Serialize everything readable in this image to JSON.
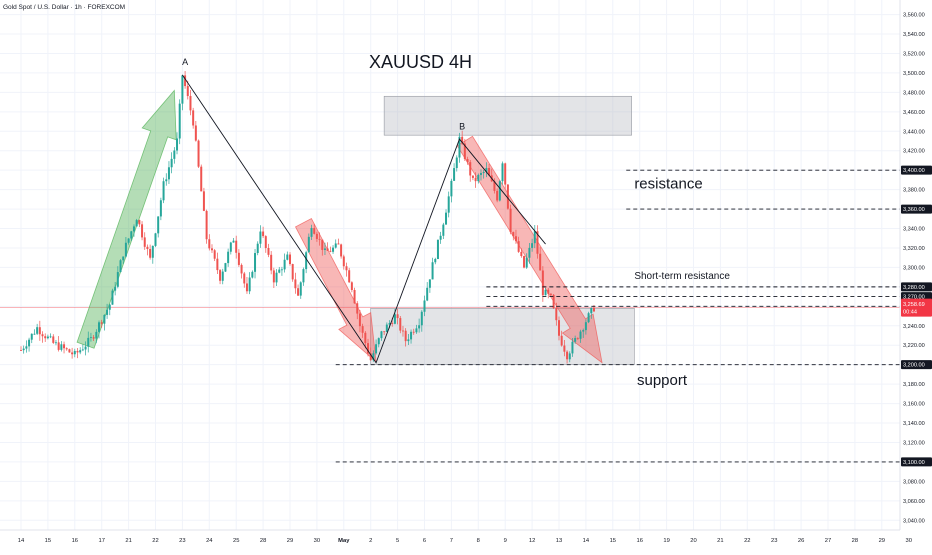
{
  "header": {
    "symbol_line": "Gold Spot / U.S. Dollar · 1h · FOREXCOM"
  },
  "colors": {
    "up": "#26a69a",
    "down": "#ef5350",
    "grid": "#f0f3fa",
    "text": "#131722",
    "green_arrow": "#4caf50",
    "red_arrow": "#ef5350",
    "zone": "#b0b3bb",
    "price_tag": "#f23645",
    "label_tag": "#131722"
  },
  "chart_data": {
    "type": "candlestick",
    "title": "XAUUSD  4H",
    "ylim": [
      3030,
      3575
    ],
    "y_ticks": [
      "3,040.00",
      "3,060.00",
      "3,080.00",
      "3,100.00",
      "3,120.00",
      "3,140.00",
      "3,160.00",
      "3,180.00",
      "3,200.00",
      "3,220.00",
      "3,240.00",
      "3,260.00",
      "3,280.00",
      "3,300.00",
      "3,320.00",
      "3,340.00",
      "3,360.00",
      "3,380.00",
      "3,400.00",
      "3,420.00",
      "3,440.00",
      "3,460.00",
      "3,480.00",
      "3,500.00",
      "3,520.00",
      "3,540.00",
      "3,560.00"
    ],
    "x_ticks": [
      "14",
      "15",
      "16",
      "17",
      "21",
      "22",
      "23",
      "24",
      "25",
      "28",
      "29",
      "30",
      "May",
      "2",
      "5",
      "6",
      "7",
      "8",
      "9",
      "12",
      "13",
      "14",
      "15",
      "16",
      "19",
      "20",
      "21",
      "22",
      "23",
      "26",
      "27",
      "28",
      "29",
      "30"
    ],
    "current_price": {
      "value": 3258.69,
      "label": "3,258.69",
      "countdown": "00:44"
    },
    "price_path": [
      {
        "x": 0,
        "y": 3215
      },
      {
        "x": 0.6,
        "y": 3238
      },
      {
        "x": 1.2,
        "y": 3222
      },
      {
        "x": 2.0,
        "y": 3210
      },
      {
        "x": 2.6,
        "y": 3226
      },
      {
        "x": 3.3,
        "y": 3262
      },
      {
        "x": 3.8,
        "y": 3315
      },
      {
        "x": 4.3,
        "y": 3352
      },
      {
        "x": 4.8,
        "y": 3308
      },
      {
        "x": 5.3,
        "y": 3385
      },
      {
        "x": 5.8,
        "y": 3430
      },
      {
        "x": 6.0,
        "y": 3498
      },
      {
        "x": 6.4,
        "y": 3450
      },
      {
        "x": 6.9,
        "y": 3330
      },
      {
        "x": 7.4,
        "y": 3290
      },
      {
        "x": 7.9,
        "y": 3330
      },
      {
        "x": 8.4,
        "y": 3272
      },
      {
        "x": 8.9,
        "y": 3340
      },
      {
        "x": 9.4,
        "y": 3288
      },
      {
        "x": 9.9,
        "y": 3310
      },
      {
        "x": 10.3,
        "y": 3270
      },
      {
        "x": 10.8,
        "y": 3345
      },
      {
        "x": 11.3,
        "y": 3315
      },
      {
        "x": 11.8,
        "y": 3322
      },
      {
        "x": 12.3,
        "y": 3280
      },
      {
        "x": 12.6,
        "y": 3240
      },
      {
        "x": 13.0,
        "y": 3205
      },
      {
        "x": 13.4,
        "y": 3232
      },
      {
        "x": 13.9,
        "y": 3250
      },
      {
        "x": 14.3,
        "y": 3225
      },
      {
        "x": 14.8,
        "y": 3245
      },
      {
        "x": 15.1,
        "y": 3280
      },
      {
        "x": 15.6,
        "y": 3335
      },
      {
        "x": 16.0,
        "y": 3385
      },
      {
        "x": 16.3,
        "y": 3432
      },
      {
        "x": 16.8,
        "y": 3388
      },
      {
        "x": 17.3,
        "y": 3400
      },
      {
        "x": 17.7,
        "y": 3372
      },
      {
        "x": 17.9,
        "y": 3410
      },
      {
        "x": 18.2,
        "y": 3340
      },
      {
        "x": 18.7,
        "y": 3300
      },
      {
        "x": 19.1,
        "y": 3335
      },
      {
        "x": 19.4,
        "y": 3275
      },
      {
        "x": 19.7,
        "y": 3268
      },
      {
        "x": 20.0,
        "y": 3230
      },
      {
        "x": 20.3,
        "y": 3210
      },
      {
        "x": 20.7,
        "y": 3230
      },
      {
        "x": 21.0,
        "y": 3245
      },
      {
        "x": 21.3,
        "y": 3258.69
      }
    ],
    "levels": [
      {
        "value": 3400,
        "label": "3,400.00",
        "x_start": 22.5
      },
      {
        "value": 3360,
        "label": "3,360.00",
        "x_start": 22.5
      },
      {
        "value": 3280,
        "label": "3,280.00",
        "x_start": 17.3
      },
      {
        "value": 3270,
        "label": "3,270.00",
        "x_start": 17.3
      },
      {
        "value": 3260,
        "label": "3,260.00",
        "x_start": 17.3
      },
      {
        "value": 3200,
        "label": "3,200.00",
        "x_start": 11.7
      },
      {
        "value": 3100,
        "label": "3,100.00",
        "x_start": 11.7
      }
    ],
    "zones": [
      {
        "x0": 13.5,
        "x1": 22.7,
        "y0": 3436,
        "y1": 3476
      },
      {
        "x0": 13.0,
        "x1": 22.8,
        "y0": 3200,
        "y1": 3258
      }
    ],
    "wave_lines": [
      [
        {
          "x": 6.0,
          "y": 3498
        },
        {
          "x": 13.2,
          "y": 3202
        },
        {
          "x": 16.3,
          "y": 3432
        },
        {
          "x": 19.5,
          "y": 3324
        }
      ]
    ],
    "arrows": [
      {
        "kind": "green",
        "from": {
          "x": 2.4,
          "y": 3220
        },
        "to": {
          "x": 5.7,
          "y": 3482
        }
      },
      {
        "kind": "red",
        "from": {
          "x": 10.5,
          "y": 3346
        },
        "to": {
          "x": 13.2,
          "y": 3203
        }
      },
      {
        "kind": "red",
        "from": {
          "x": 16.5,
          "y": 3430
        },
        "to": {
          "x": 21.6,
          "y": 3202
        }
      }
    ],
    "annotations": [
      {
        "text": "A",
        "x": 6.1,
        "y": 3508
      },
      {
        "text": "B",
        "x": 16.4,
        "y": 3442
      },
      {
        "text": "resistance",
        "x": 22.8,
        "y": 3381
      },
      {
        "text": "Short-term resistance",
        "x": 22.8,
        "y": 3288
      },
      {
        "text": "support",
        "x": 22.9,
        "y": 3179
      }
    ]
  }
}
